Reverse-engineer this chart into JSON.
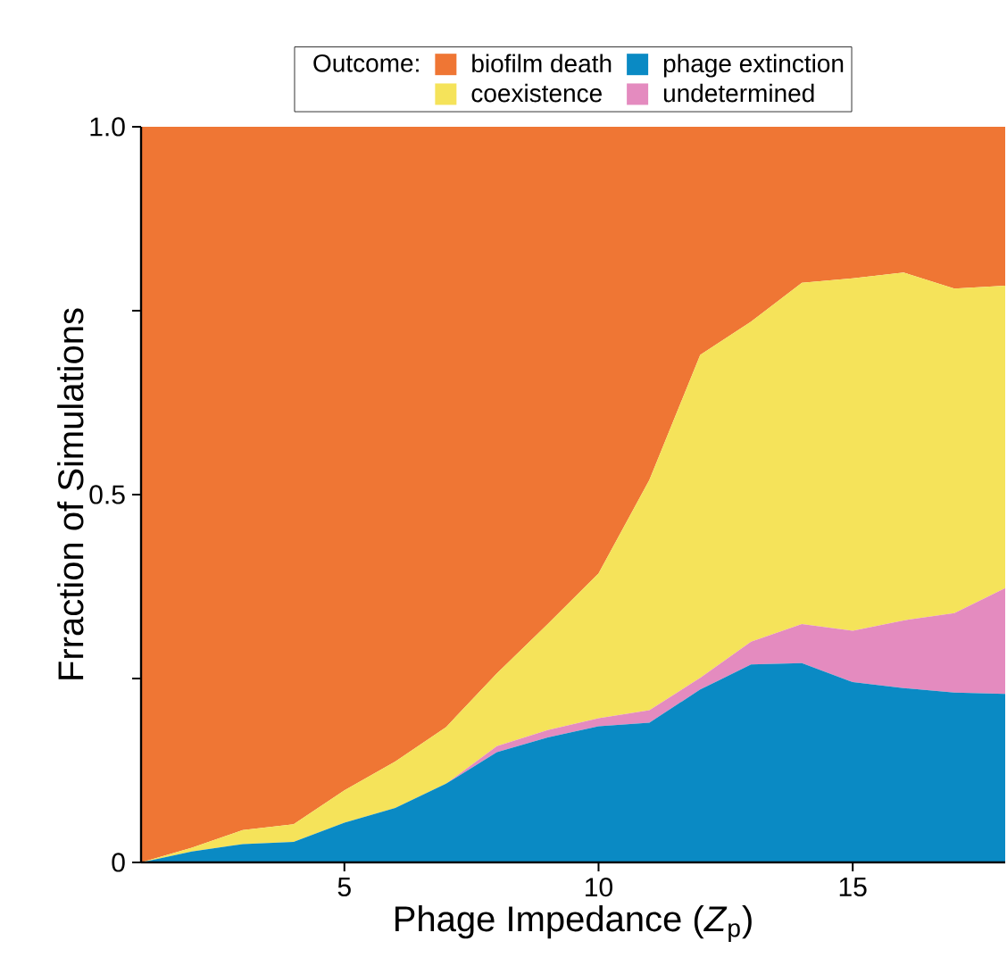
{
  "chart_data": {
    "type": "area",
    "stacked": true,
    "xlabel": "Phage Impedance (*Z*$_{p}$)",
    "ylabel": "Frraction of Simulations",
    "legend_title": "Outcome:",
    "legend": "top",
    "x": [
      1,
      2,
      3,
      4,
      5,
      6,
      7,
      8,
      9,
      10,
      11,
      12,
      13,
      14,
      15,
      16,
      17,
      18
    ],
    "xlim": [
      1,
      18
    ],
    "xticks": [
      5,
      10,
      15
    ],
    "ylim": [
      0,
      1
    ],
    "yticks": [
      0,
      {
        "value": 0.25,
        "label": null
      },
      {
        "value": 0.5,
        "label": "0.5"
      },
      {
        "value": 0.75,
        "label": null
      },
      {
        "value": 1,
        "label": "1.0"
      }
    ],
    "series": [
      {
        "name": "phage extinction",
        "color": "#0a8ac4",
        "values": [
          0,
          0.015,
          0.025,
          0.028,
          0.054,
          0.074,
          0.107,
          0.15,
          0.17,
          0.185,
          0.19,
          0.235,
          0.269,
          0.271,
          0.245,
          0.237,
          0.231,
          0.229
        ]
      },
      {
        "name": "undetermined",
        "color": "#e48bbf",
        "values": [
          0,
          0,
          0,
          0,
          0,
          0,
          0,
          0.008,
          0.01,
          0.011,
          0.017,
          0.016,
          0.031,
          0.053,
          0.07,
          0.092,
          0.108,
          0.144
        ]
      },
      {
        "name": "coexistence",
        "color": "#f5e35a",
        "values": [
          0,
          0.005,
          0.019,
          0.024,
          0.044,
          0.063,
          0.077,
          0.099,
          0.144,
          0.197,
          0.313,
          0.439,
          0.435,
          0.464,
          0.479,
          0.473,
          0.441,
          0.411
        ]
      },
      {
        "name": "biofilm death",
        "color": "#ef7634",
        "values": [
          1,
          0.98,
          0.956,
          0.948,
          0.902,
          0.863,
          0.816,
          0.743,
          0.676,
          0.607,
          0.48,
          0.31,
          0.265,
          0.212,
          0.206,
          0.198,
          0.22,
          0.216
        ]
      }
    ]
  }
}
